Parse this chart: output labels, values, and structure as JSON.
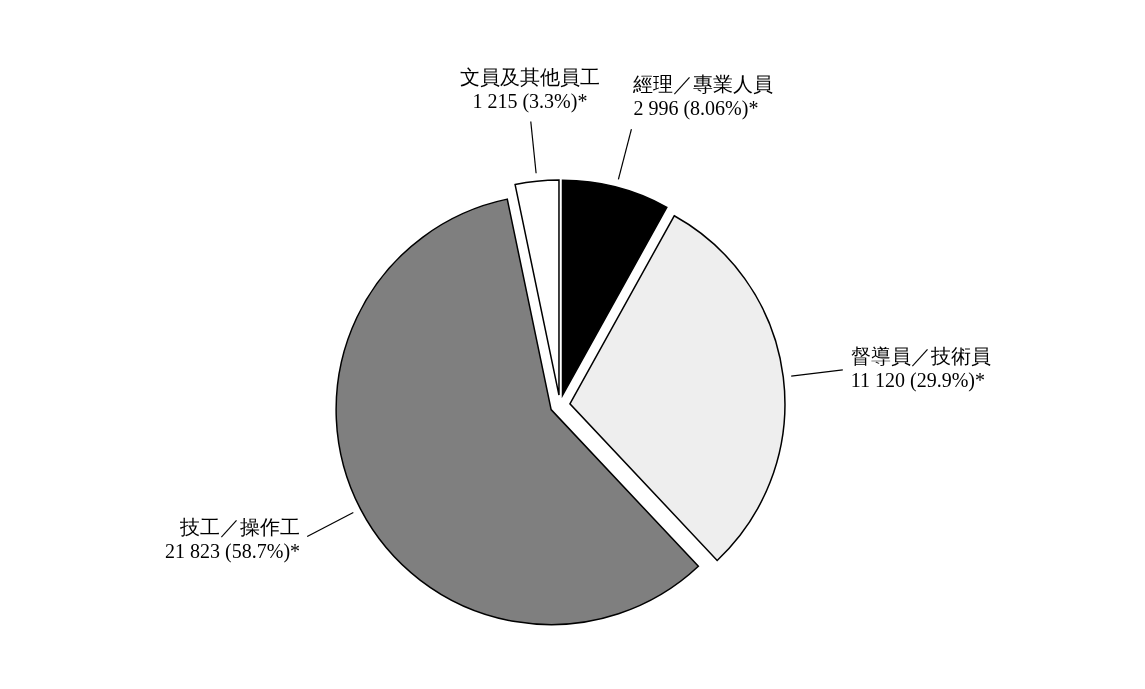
{
  "chart_data": {
    "type": "pie",
    "categories": [
      "經理／專業人員",
      "督導員／技術員",
      "技工／操作工",
      "文員及其他員工"
    ],
    "values": [
      2996,
      11120,
      21823,
      1215
    ],
    "value_labels": [
      "2 996 (8.06%)*",
      "11 120 (29.9%)*",
      "21 823 (58.7%)*",
      "1 215 (3.3%)*"
    ],
    "colors": [
      "#000000",
      "#eeeeee",
      "#7f7f7f",
      "#ffffff"
    ]
  }
}
